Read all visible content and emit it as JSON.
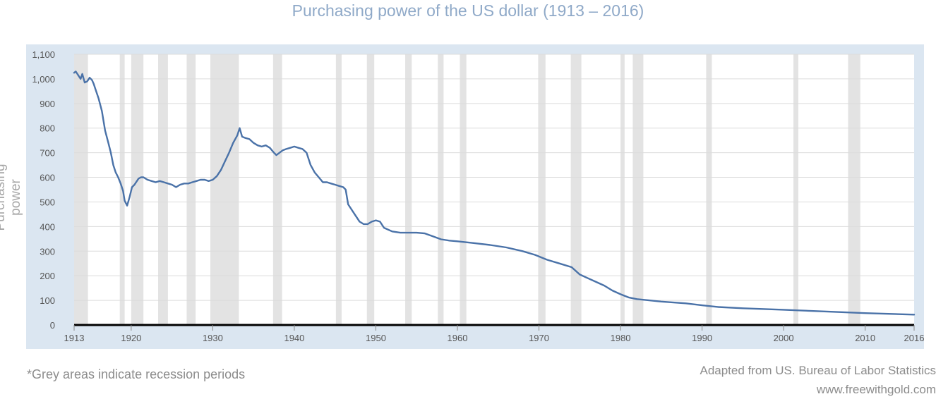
{
  "page": {
    "title": "Purchasing power of the US dollar (1913 – 2016)",
    "footnote": "*Grey areas indicate recession periods",
    "source_line1": "Adapted from US. Bureau of Labor Statistics",
    "source_line2": "www.freewithgold.com"
  },
  "chart_data": {
    "type": "line",
    "title": "Purchasing power of the US dollar (1913 – 2016)",
    "xlabel": "",
    "ylabel": "Purchasing power",
    "xlim": [
      1913,
      2016
    ],
    "ylim": [
      0,
      1100
    ],
    "x_ticks": [
      1913,
      1920,
      1930,
      1940,
      1950,
      1960,
      1970,
      1980,
      1990,
      2000,
      2010,
      2016
    ],
    "y_ticks": [
      0,
      100,
      200,
      300,
      400,
      500,
      600,
      700,
      800,
      900,
      1000,
      1100
    ],
    "y_tick_labels": [
      "0",
      "100",
      "200",
      "300",
      "400",
      "500",
      "600",
      "700",
      "800",
      "900",
      "1,000",
      "1,100"
    ],
    "grid": "horizontal",
    "colors": {
      "line": "#4a72a8",
      "recession": "#e3e3e3",
      "plot_background": "#ffffff",
      "panel_background": "#dbe6f1"
    },
    "recessions": [
      [
        1913.0,
        1914.7
      ],
      [
        1918.6,
        1919.2
      ],
      [
        1920.0,
        1921.5
      ],
      [
        1923.3,
        1924.5
      ],
      [
        1926.8,
        1927.9
      ],
      [
        1929.7,
        1933.2
      ],
      [
        1937.4,
        1938.5
      ],
      [
        1945.1,
        1945.8
      ],
      [
        1948.9,
        1949.8
      ],
      [
        1953.6,
        1954.4
      ],
      [
        1957.6,
        1958.3
      ],
      [
        1960.3,
        1961.1
      ],
      [
        1969.9,
        1970.8
      ],
      [
        1973.9,
        1975.2
      ],
      [
        1980.0,
        1980.5
      ],
      [
        1981.5,
        1982.8
      ],
      [
        1990.5,
        1991.2
      ],
      [
        2001.2,
        2001.8
      ],
      [
        2007.9,
        2009.4
      ]
    ],
    "series": [
      {
        "values_x": [
          1913.0,
          1913.2,
          1913.5,
          1913.8,
          1914.0,
          1914.3,
          1914.6,
          1914.9,
          1915.2,
          1915.4,
          1915.7,
          1916.0,
          1916.4,
          1916.8,
          1917.2,
          1917.5,
          1917.8,
          1918.1,
          1918.4,
          1918.7,
          1919.0,
          1919.2,
          1919.5,
          1919.8,
          1920.1,
          1920.4,
          1920.6,
          1920.9,
          1921.2,
          1921.5,
          1922.0,
          1922.5,
          1923.0,
          1923.5,
          1924.0,
          1924.5,
          1925.0,
          1925.5,
          1926.0,
          1926.5,
          1927.0,
          1927.5,
          1928.0,
          1928.5,
          1929.0,
          1929.5,
          1930.0,
          1930.5,
          1931.0,
          1931.5,
          1932.0,
          1932.5,
          1933.0,
          1933.3,
          1933.6,
          1934.0,
          1934.5,
          1935.0,
          1935.5,
          1936.0,
          1936.5,
          1937.0,
          1937.5,
          1937.8,
          1938.2,
          1938.6,
          1939.0,
          1939.5,
          1940.0,
          1940.5,
          1941.0,
          1941.5,
          1942.0,
          1942.5,
          1943.0,
          1943.5,
          1944.0,
          1944.5,
          1945.0,
          1945.5,
          1946.0,
          1946.3,
          1946.6,
          1947.0,
          1947.5,
          1948.0,
          1948.5,
          1949.0,
          1949.5,
          1950.0,
          1950.5,
          1951.0,
          1952.0,
          1953.0,
          1954.0,
          1955.0,
          1956.0,
          1957.0,
          1958.0,
          1959.0,
          1960.0,
          1962.0,
          1964.0,
          1966.0,
          1968.0,
          1969.5,
          1971.0,
          1972.5,
          1974.0,
          1975.0,
          1976.0,
          1977.0,
          1978.0,
          1979.0,
          1980.0,
          1981.0,
          1982.0,
          1983.0,
          1985.0,
          1988.0,
          1990.0,
          1992.0,
          1995.0,
          2000.0,
          2005.0,
          2010.0,
          2016.0
        ],
        "values_y": [
          1025,
          1030,
          1015,
          1000,
          1020,
          985,
          990,
          1005,
          995,
          980,
          950,
          920,
          870,
          790,
          740,
          700,
          650,
          620,
          600,
          575,
          545,
          505,
          485,
          520,
          560,
          570,
          580,
          595,
          600,
          600,
          590,
          585,
          580,
          585,
          580,
          575,
          570,
          560,
          570,
          575,
          575,
          580,
          585,
          590,
          590,
          585,
          590,
          605,
          630,
          665,
          700,
          740,
          770,
          800,
          765,
          760,
          755,
          740,
          730,
          725,
          730,
          720,
          700,
          690,
          700,
          710,
          715,
          720,
          725,
          720,
          715,
          700,
          650,
          620,
          600,
          580,
          580,
          575,
          570,
          565,
          560,
          550,
          490,
          470,
          445,
          420,
          410,
          410,
          420,
          425,
          420,
          395,
          380,
          375,
          375,
          375,
          372,
          360,
          348,
          343,
          340,
          333,
          325,
          315,
          300,
          285,
          265,
          250,
          235,
          205,
          190,
          175,
          160,
          140,
          125,
          112,
          105,
          102,
          95,
          88,
          80,
          73,
          68,
          62,
          55,
          48,
          42
        ]
      }
    ]
  }
}
